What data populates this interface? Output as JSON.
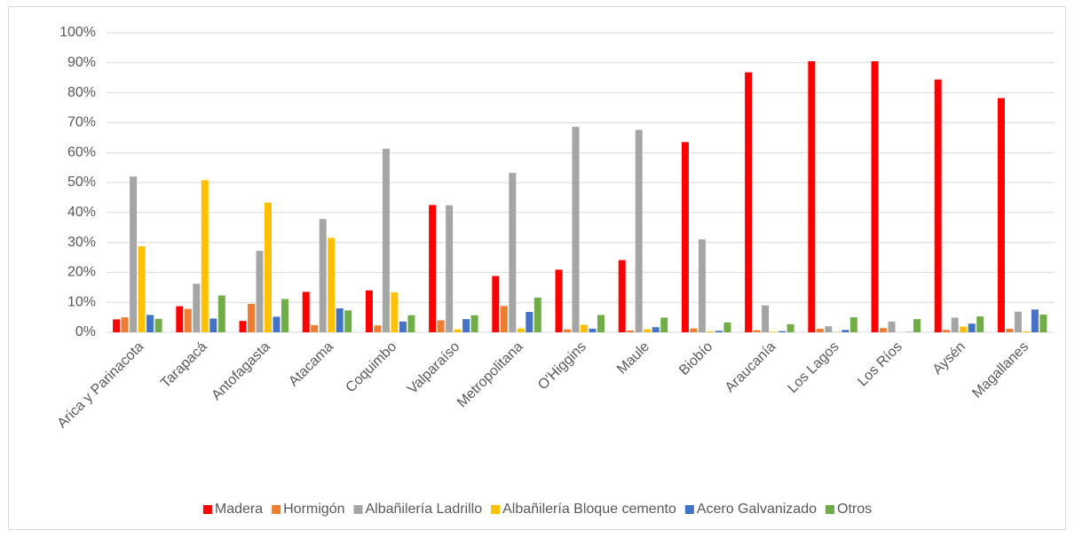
{
  "chart_data": {
    "type": "bar",
    "categories": [
      "Arica y Parinacota",
      "Tarapacá",
      "Antofagasta",
      "Atacama",
      "Coquimbo",
      "Valparaíso",
      "Metropolitana",
      "O'Higgins",
      "Maule",
      "Biobío",
      "Araucanía",
      "Los Lagos",
      "Los Ríos",
      "Aysén",
      "Magallanes"
    ],
    "series": [
      {
        "name": "Madera",
        "color": "#ff0000",
        "values": [
          4.3,
          8.7,
          3.8,
          13.5,
          14,
          42.5,
          18.8,
          20.9,
          24.1,
          63.5,
          86.8,
          90.5,
          90.5,
          84.4,
          78.2
        ]
      },
      {
        "name": "Hormigón",
        "color": "#ed7d31",
        "values": [
          5,
          7.8,
          9.5,
          2.4,
          2.3,
          4,
          8.8,
          1,
          0.6,
          1.3,
          0.7,
          1.2,
          1.4,
          0.8,
          1.2
        ]
      },
      {
        "name": "Albañilería Ladrillo",
        "color": "#a5a5a5",
        "values": [
          52,
          16.2,
          27.2,
          37.8,
          61.3,
          42.4,
          53.2,
          68.6,
          67.6,
          31,
          9,
          2,
          3.6,
          4.9,
          6.9
        ]
      },
      {
        "name": "Albañilería Bloque cemento",
        "color": "#ffc000",
        "values": [
          28.7,
          50.8,
          43.3,
          31.5,
          13.3,
          1,
          1.3,
          2.5,
          1,
          0.3,
          0.2,
          0.1,
          0,
          1.9,
          0.3
        ]
      },
      {
        "name": "Acero Galvanizado",
        "color": "#4472c4",
        "values": [
          5.8,
          4.6,
          5.2,
          8,
          3.6,
          4.4,
          6.8,
          1.2,
          1.7,
          0.5,
          0.4,
          0.8,
          0.1,
          2.9,
          7.6
        ]
      },
      {
        "name": "Otros",
        "color": "#70ad47",
        "values": [
          4.5,
          12.3,
          11.1,
          7.3,
          5.7,
          5.7,
          11.6,
          5.8,
          4.9,
          3.3,
          2.7,
          5,
          4.4,
          5.3,
          5.9
        ]
      }
    ],
    "ylim": [
      0,
      100
    ],
    "yticks": [
      {
        "value": 0,
        "label": "0%"
      },
      {
        "value": 10,
        "label": "10%"
      },
      {
        "value": 20,
        "label": "20%"
      },
      {
        "value": 30,
        "label": "30%"
      },
      {
        "value": 40,
        "label": "40%"
      },
      {
        "value": 50,
        "label": "50%"
      },
      {
        "value": 60,
        "label": "60%"
      },
      {
        "value": 70,
        "label": "70%"
      },
      {
        "value": 80,
        "label": "80%"
      },
      {
        "value": 90,
        "label": "90%"
      },
      {
        "value": 100,
        "label": "100%"
      }
    ],
    "grid": true,
    "legend": "bottom"
  }
}
